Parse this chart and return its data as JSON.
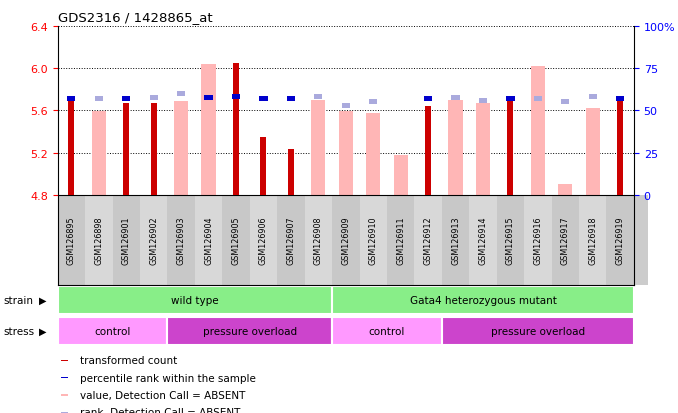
{
  "title": "GDS2316 / 1428865_at",
  "samples": [
    "GSM126895",
    "GSM126898",
    "GSM126901",
    "GSM126902",
    "GSM126903",
    "GSM126904",
    "GSM126905",
    "GSM126906",
    "GSM126907",
    "GSM126908",
    "GSM126909",
    "GSM126910",
    "GSM126911",
    "GSM126912",
    "GSM126913",
    "GSM126914",
    "GSM126915",
    "GSM126916",
    "GSM126917",
    "GSM126918",
    "GSM126919"
  ],
  "red_values": [
    5.71,
    null,
    5.67,
    5.67,
    null,
    null,
    6.05,
    5.35,
    5.23,
    null,
    null,
    null,
    null,
    5.64,
    null,
    null,
    5.71,
    null,
    null,
    null,
    5.71
  ],
  "pink_values": [
    null,
    5.59,
    null,
    null,
    5.69,
    6.04,
    null,
    null,
    null,
    5.7,
    5.59,
    5.58,
    5.18,
    null,
    5.7,
    5.67,
    null,
    6.02,
    4.9,
    5.62,
    null
  ],
  "blue_values": [
    5.71,
    null,
    5.71,
    null,
    null,
    5.72,
    5.73,
    5.71,
    5.71,
    null,
    null,
    null,
    null,
    5.71,
    null,
    null,
    5.71,
    null,
    null,
    null,
    5.71
  ],
  "lightblue_values": [
    null,
    5.71,
    null,
    5.72,
    5.76,
    null,
    null,
    null,
    null,
    5.73,
    5.65,
    5.68,
    null,
    null,
    5.72,
    5.69,
    null,
    5.71,
    5.68,
    5.73,
    null
  ],
  "ylim": [
    4.8,
    6.4
  ],
  "yticks": [
    4.8,
    5.2,
    5.6,
    6.0,
    6.4
  ],
  "right_ytick_labels": [
    "0",
    "25",
    "50",
    "75",
    "100%"
  ],
  "red_color": "#CC0000",
  "pink_color": "#FFB6B6",
  "blue_color": "#0000CC",
  "lightblue_color": "#AAAADD",
  "strain_color": "#88EE88",
  "control_color": "#FF99FF",
  "overload_color": "#CC44CC",
  "tick_bg_color": "#CCCCCC"
}
